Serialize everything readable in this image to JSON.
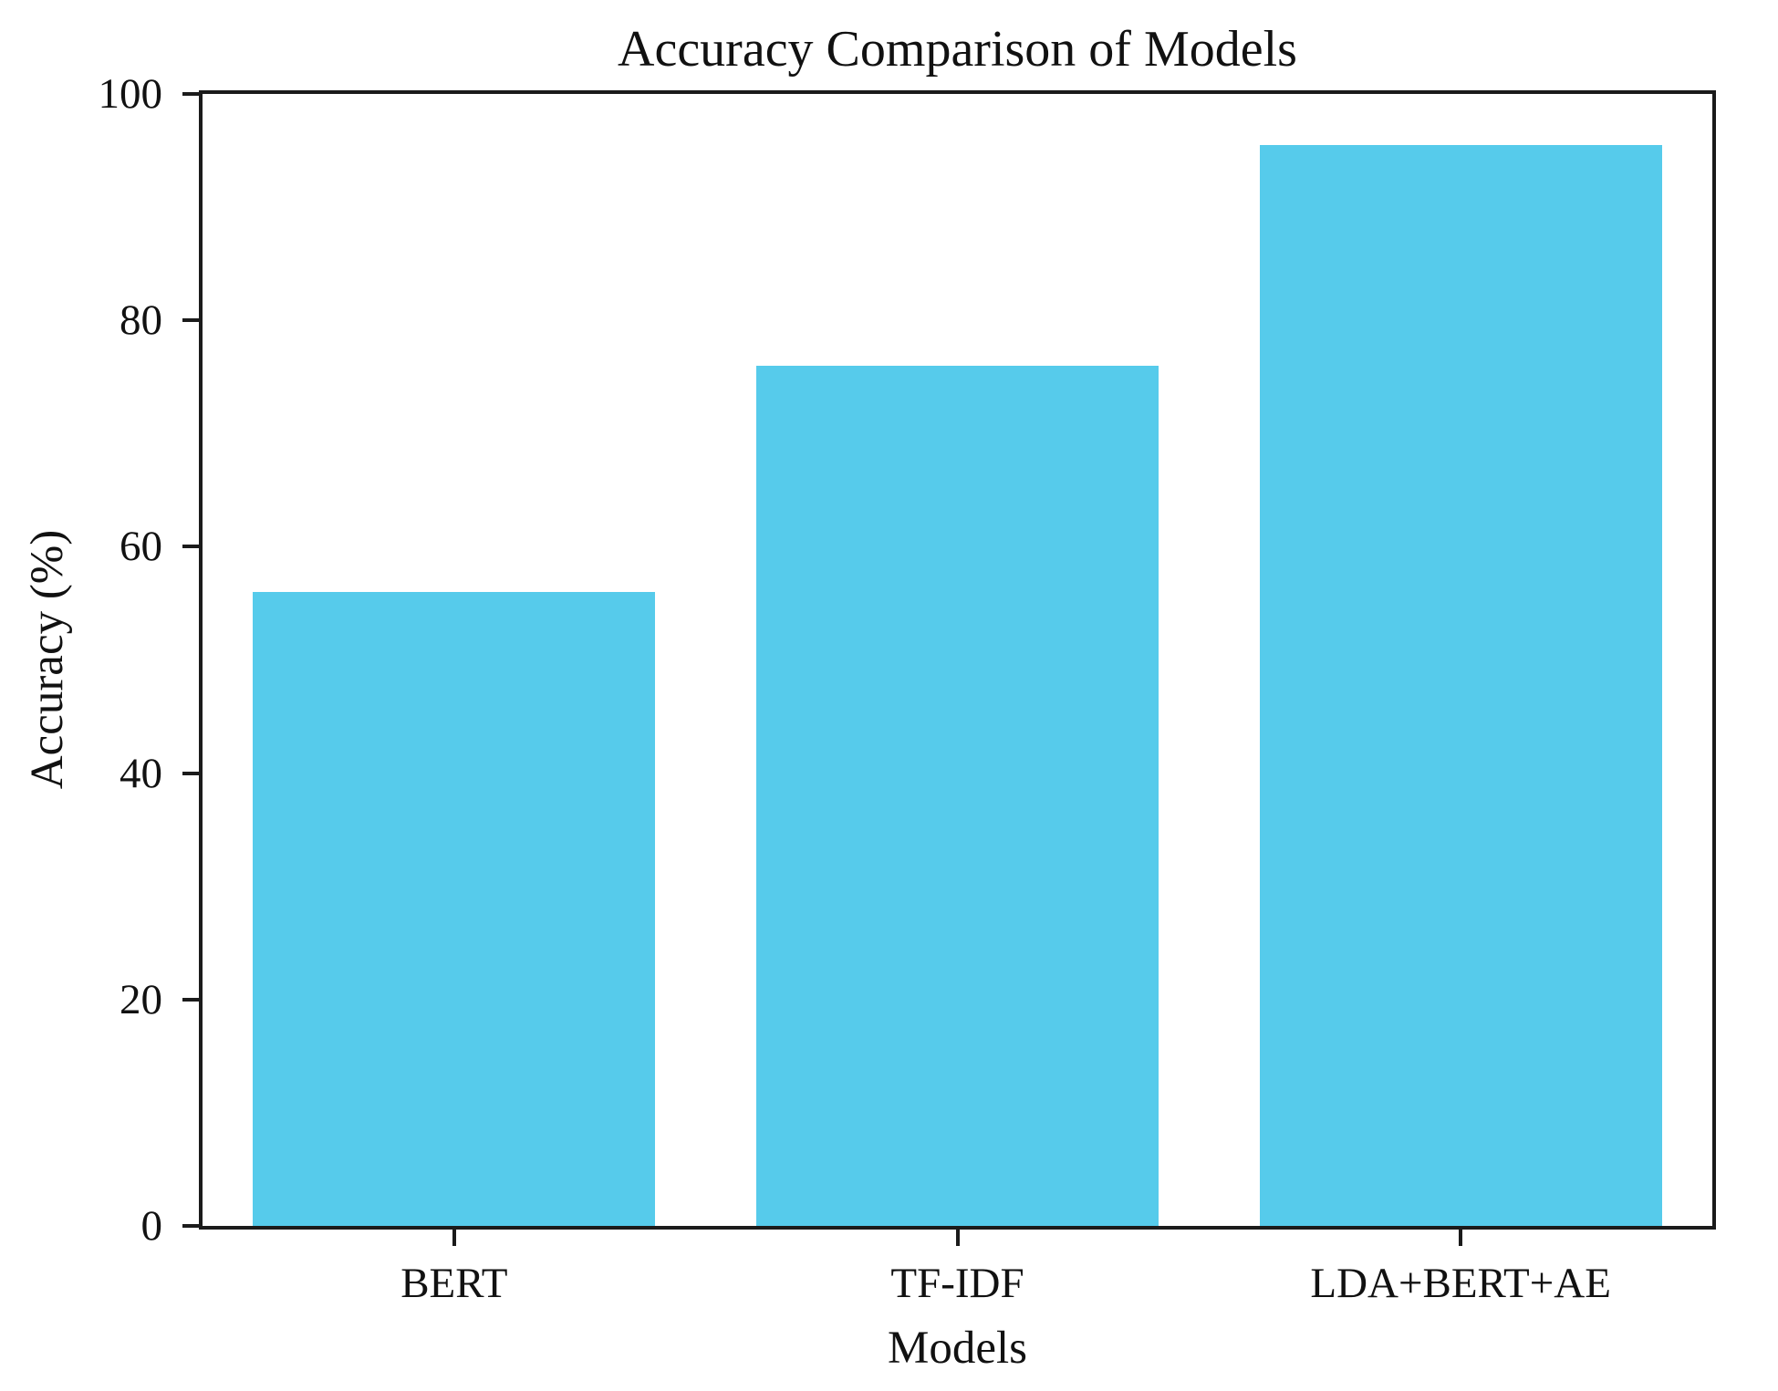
{
  "chart_data": {
    "type": "bar",
    "title": "Accuracy Comparison of Models",
    "xlabel": "Models",
    "ylabel": "Accuracy (%)",
    "categories": [
      "BERT",
      "TF-IDF",
      "LDA+BERT+AE"
    ],
    "values": [
      56,
      76,
      95.5
    ],
    "yticks": [
      0,
      20,
      40,
      60,
      80,
      100
    ],
    "ylim": [
      0,
      100
    ],
    "bar_width_fraction": 0.8,
    "grid": false,
    "legend": false,
    "bar_color": "#56CBEB",
    "axis_color": "#1b1b1b",
    "text_color": "#111111"
  }
}
